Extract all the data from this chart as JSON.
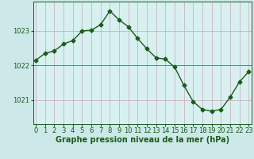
{
  "x": [
    0,
    1,
    2,
    3,
    4,
    5,
    6,
    7,
    8,
    9,
    10,
    11,
    12,
    13,
    14,
    15,
    16,
    17,
    18,
    19,
    20,
    21,
    22,
    23
  ],
  "y": [
    1022.15,
    1022.35,
    1022.42,
    1022.62,
    1022.72,
    1023.0,
    1023.02,
    1023.18,
    1023.58,
    1023.32,
    1023.12,
    1022.78,
    1022.48,
    1022.22,
    1022.18,
    1021.95,
    1021.42,
    1020.95,
    1020.72,
    1020.68,
    1020.72,
    1021.08,
    1021.52,
    1021.82
  ],
  "line_color": "#1a5c1a",
  "marker": "D",
  "marker_size": 2.5,
  "linewidth": 1.0,
  "bg_color": "#cce8e8",
  "plot_bg_color": "#d8f0f0",
  "grid_color": "#c8a8b8",
  "grid_linewidth": 0.5,
  "axis_color": "#1a5c1a",
  "xlabel": "Graphe pression niveau de la mer (hPa)",
  "xlabel_fontsize": 7.0,
  "yticks": [
    1021,
    1022,
    1023
  ],
  "xtick_labels": [
    "0",
    "1",
    "2",
    "3",
    "4",
    "5",
    "6",
    "7",
    "8",
    "9",
    "10",
    "11",
    "12",
    "13",
    "14",
    "15",
    "16",
    "17",
    "18",
    "19",
    "20",
    "21",
    "22",
    "23"
  ],
  "ylim": [
    1020.3,
    1023.85
  ],
  "xlim": [
    -0.3,
    23.3
  ],
  "tick_fontsize": 6.0,
  "red_hline_y": 1022.0,
  "red_hline_color": "#dd2222",
  "red_hline_lw": 0.5
}
